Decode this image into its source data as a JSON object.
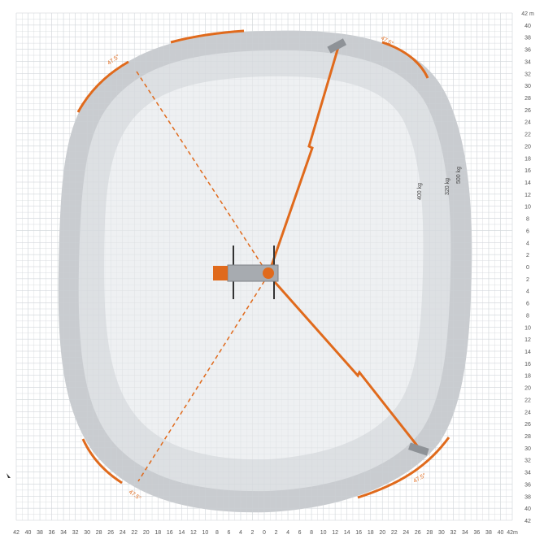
{
  "diagram": {
    "unit": "m",
    "x_axis_ticks": [
      "42",
      "40",
      "38",
      "36",
      "34",
      "32",
      "30",
      "28",
      "26",
      "24",
      "22",
      "20",
      "18",
      "16",
      "14",
      "12",
      "10",
      "8",
      "6",
      "4",
      "2",
      "0",
      "2",
      "4",
      "6",
      "8",
      "10",
      "12",
      "14",
      "16",
      "18",
      "20",
      "22",
      "24",
      "26",
      "28",
      "30",
      "32",
      "34",
      "36",
      "38",
      "40",
      "42m"
    ],
    "y_axis_ticks": [
      "42 m",
      "40",
      "38",
      "36",
      "34",
      "32",
      "30",
      "28",
      "26",
      "24",
      "22",
      "20",
      "18",
      "16",
      "14",
      "12",
      "10",
      "8",
      "6",
      "4",
      "2",
      "0",
      "2",
      "4",
      "6",
      "8",
      "10",
      "12",
      "14",
      "16",
      "18",
      "20",
      "22",
      "24",
      "26",
      "28",
      "30",
      "32",
      "34",
      "36",
      "38",
      "40",
      "42"
    ],
    "envelope_labels": [
      "500 kg",
      "320 kg",
      "400 kg"
    ],
    "slew_labels": [
      "47.5°",
      "47.5°",
      "47.5°",
      "47.5°"
    ],
    "colors": {
      "boom": "#e06a1c",
      "envelope_outer": "#c9ccd0",
      "envelope_mid": "#dde0e3",
      "envelope_inner": "#eef0f2",
      "grid": "#d9dde1",
      "chassis": "#a7abb0"
    }
  }
}
